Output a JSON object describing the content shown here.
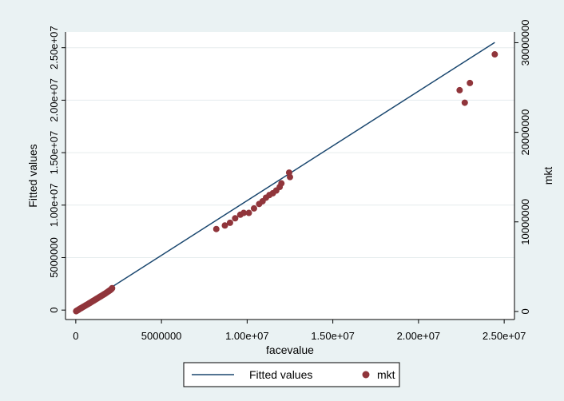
{
  "chart_data": {
    "type": "scatter",
    "xlabel": "facevalue",
    "ylabel_left": "Fitted values",
    "ylabel_right": "mkt",
    "x_ticks": [
      {
        "value": 0,
        "label": "0"
      },
      {
        "value": 5000000,
        "label": "5000000"
      },
      {
        "value": 10000000,
        "label": "1.00e+07"
      },
      {
        "value": 15000000,
        "label": "1.50e+07"
      },
      {
        "value": 20000000,
        "label": "2.00e+07"
      },
      {
        "value": 25000000,
        "label": "2.50e+07"
      }
    ],
    "y_left_ticks": [
      {
        "value": 0,
        "label": "0"
      },
      {
        "value": 5000000,
        "label": "5000000"
      },
      {
        "value": 10000000,
        "label": "1.00e+07"
      },
      {
        "value": 15000000,
        "label": "1.50e+07"
      },
      {
        "value": 20000000,
        "label": "2.00e+07"
      },
      {
        "value": 25000000,
        "label": "2.50e+07"
      }
    ],
    "y_right_ticks": [
      {
        "value": 0,
        "label": "0"
      },
      {
        "value": 10000000,
        "label": "10000000"
      },
      {
        "value": 20000000,
        "label": "20000000"
      },
      {
        "value": 30000000,
        "label": "30000000"
      }
    ],
    "xlim": [
      -600000,
      25600000
    ],
    "ylim_left": [
      -900000,
      26500000
    ],
    "ylim_right": [
      -900000,
      31200000
    ],
    "grid": "horizontal",
    "legend_position": "bottom",
    "series": [
      {
        "name": "Fitted values",
        "kind": "line",
        "axis": "left",
        "color": "#1a476f",
        "points": [
          [
            0,
            0
          ],
          [
            24450000,
            25500000
          ]
        ]
      },
      {
        "name": "mkt",
        "kind": "scatter",
        "axis": "right",
        "color": "#90353b",
        "points": [
          [
            20000,
            30000
          ],
          [
            60000,
            80000
          ],
          [
            100000,
            130000
          ],
          [
            150000,
            180000
          ],
          [
            200000,
            250000
          ],
          [
            250000,
            310000
          ],
          [
            300000,
            360000
          ],
          [
            350000,
            420000
          ],
          [
            400000,
            480000
          ],
          [
            460000,
            540000
          ],
          [
            520000,
            610000
          ],
          [
            580000,
            680000
          ],
          [
            640000,
            740000
          ],
          [
            700000,
            810000
          ],
          [
            760000,
            880000
          ],
          [
            820000,
            950000
          ],
          [
            880000,
            1020000
          ],
          [
            940000,
            1090000
          ],
          [
            1000000,
            1160000
          ],
          [
            1060000,
            1230000
          ],
          [
            1120000,
            1300000
          ],
          [
            1180000,
            1370000
          ],
          [
            1240000,
            1440000
          ],
          [
            1300000,
            1510000
          ],
          [
            1360000,
            1580000
          ],
          [
            1420000,
            1650000
          ],
          [
            1480000,
            1720000
          ],
          [
            1540000,
            1790000
          ],
          [
            1600000,
            1860000
          ],
          [
            1660000,
            1930000
          ],
          [
            1720000,
            2000000
          ],
          [
            1780000,
            2080000
          ],
          [
            1840000,
            2160000
          ],
          [
            1900000,
            2240000
          ],
          [
            1960000,
            2320000
          ],
          [
            2020000,
            2400000
          ],
          [
            2080000,
            2500000
          ],
          [
            2120000,
            2600000
          ],
          [
            8200000,
            9200000
          ],
          [
            8700000,
            9600000
          ],
          [
            9000000,
            9900000
          ],
          [
            9300000,
            10400000
          ],
          [
            9600000,
            10800000
          ],
          [
            9800000,
            11000000
          ],
          [
            10100000,
            11000000
          ],
          [
            10400000,
            11500000
          ],
          [
            10700000,
            12000000
          ],
          [
            10900000,
            12300000
          ],
          [
            11100000,
            12700000
          ],
          [
            11300000,
            13000000
          ],
          [
            11500000,
            13200000
          ],
          [
            11700000,
            13500000
          ],
          [
            11900000,
            13900000
          ],
          [
            12000000,
            14300000
          ],
          [
            12450000,
            15500000
          ],
          [
            12500000,
            15000000
          ],
          [
            22400000,
            24700000
          ],
          [
            22700000,
            23300000
          ],
          [
            23000000,
            25500000
          ],
          [
            24450000,
            28700000
          ]
        ]
      }
    ]
  }
}
